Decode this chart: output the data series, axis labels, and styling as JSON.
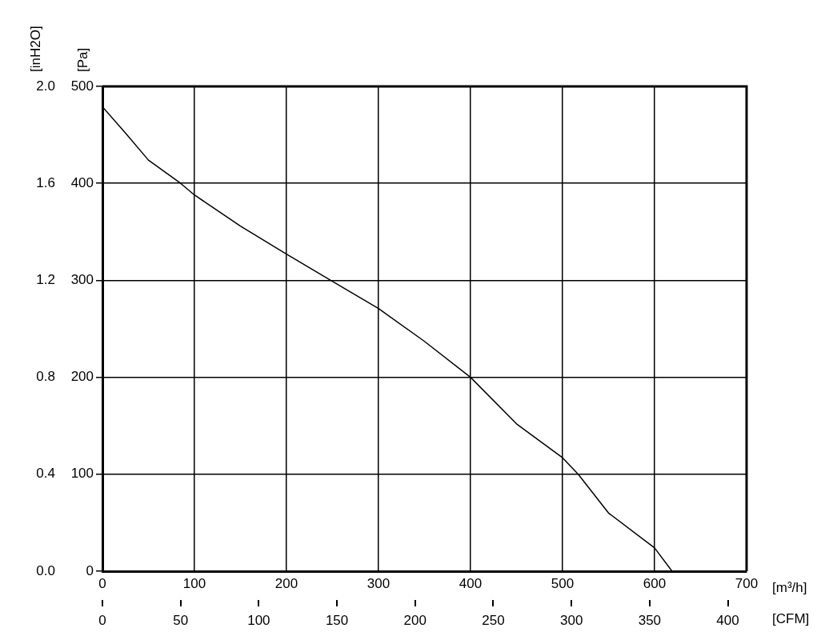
{
  "chart_data": {
    "type": "line",
    "xlabel": "[m³/h]",
    "x2label": "[CFM]",
    "ylabel": "[Pa]",
    "y2label": "[inH2O]",
    "xlim": [
      0,
      700
    ],
    "xticks": [
      0,
      100,
      200,
      300,
      400,
      500,
      600,
      700
    ],
    "x2lim": [
      0,
      412
    ],
    "x2ticks": [
      0,
      50,
      100,
      150,
      200,
      250,
      300,
      350,
      400
    ],
    "ylim": [
      0,
      500
    ],
    "yticks": [
      0,
      100,
      200,
      300,
      400,
      500
    ],
    "y2lim": [
      0,
      2.0
    ],
    "y2ticks": [
      {
        "value": 0,
        "label": "0.0"
      },
      {
        "value": 0.4,
        "label": "0.4"
      },
      {
        "value": 0.8,
        "label": "0.8"
      },
      {
        "value": 1.2,
        "label": "1.2"
      },
      {
        "value": 1.6,
        "label": "1.6"
      },
      {
        "value": 2.0,
        "label": "2.0"
      }
    ],
    "grid": true,
    "legend": false,
    "marker": "none",
    "line_style": "solid",
    "series": [
      {
        "color": "#000000",
        "x": [
          0,
          25,
          50,
          85,
          100,
          150,
          200,
          248,
          300,
          350,
          400,
          450,
          500,
          517,
          550,
          600,
          619
        ],
        "values": [
          479,
          452,
          424,
          400,
          388,
          356,
          327,
          300,
          271,
          237,
          200,
          152,
          117,
          100,
          60,
          24,
          0
        ]
      }
    ]
  }
}
